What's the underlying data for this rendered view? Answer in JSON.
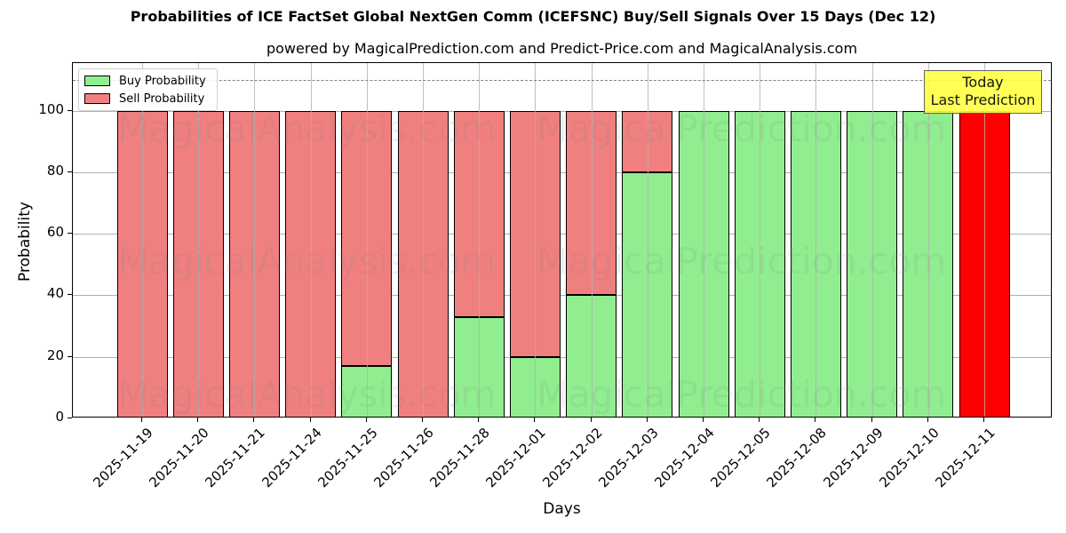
{
  "header": {
    "title": "Probabilities of ICE FactSet Global NextGen Comm (ICEFSNC) Buy/Sell Signals Over 15 Days (Dec 12)",
    "subtitle": "powered by MagicalPrediction.com and Predict-Price.com and MagicalAnalysis.com"
  },
  "legend": {
    "buy_label": "Buy Probability",
    "sell_label": "Sell Probability"
  },
  "annotation": {
    "line1": "Today",
    "line2": "Last Prediction"
  },
  "watermarks": [
    "MagicalAnalysis.com",
    "MagicalPrediction.com"
  ],
  "colors": {
    "buy": "#90ee90",
    "sell": "#f08080",
    "today_bar": "#ff0000",
    "annotation_bg": "#ffff44"
  },
  "axes": {
    "xlabel": "Days",
    "ylabel": "Probability",
    "yticks": [
      "0",
      "20",
      "40",
      "60",
      "80",
      "100"
    ]
  },
  "chart_data": {
    "type": "bar",
    "stacked": true,
    "title": "Probabilities of ICE FactSet Global NextGen Comm (ICEFSNC) Buy/Sell Signals Over 15 Days (Dec 12)",
    "subtitle": "powered by MagicalPrediction.com and Predict-Price.com and MagicalAnalysis.com",
    "xlabel": "Days",
    "ylabel": "Probability",
    "ylim": [
      0,
      115.5
    ],
    "yticks": [
      0,
      20,
      40,
      60,
      80,
      100
    ],
    "grid": true,
    "legend_position": "upper left",
    "reference_line": {
      "y": 110,
      "style": "dashed",
      "color": "#808080"
    },
    "categories": [
      "2025-11-19",
      "2025-11-20",
      "2025-11-21",
      "2025-11-24",
      "2025-11-25",
      "2025-11-26",
      "2025-11-28",
      "2025-12-01",
      "2025-12-02",
      "2025-12-03",
      "2025-12-04",
      "2025-12-05",
      "2025-12-08",
      "2025-12-09",
      "2025-12-10",
      "2025-12-11"
    ],
    "series": [
      {
        "name": "Buy Probability",
        "color": "#90ee90",
        "values": [
          0,
          0,
          0,
          0,
          17,
          0,
          33,
          20,
          40,
          80,
          100,
          100,
          100,
          100,
          100,
          0
        ]
      },
      {
        "name": "Sell Probability",
        "color": "#f08080",
        "values": [
          100,
          100,
          100,
          100,
          83,
          100,
          67,
          80,
          60,
          20,
          0,
          0,
          0,
          0,
          0,
          100
        ]
      }
    ],
    "highlight": {
      "category": "2025-12-11",
      "color": "#ff0000",
      "label": "Today\nLast Prediction"
    }
  }
}
